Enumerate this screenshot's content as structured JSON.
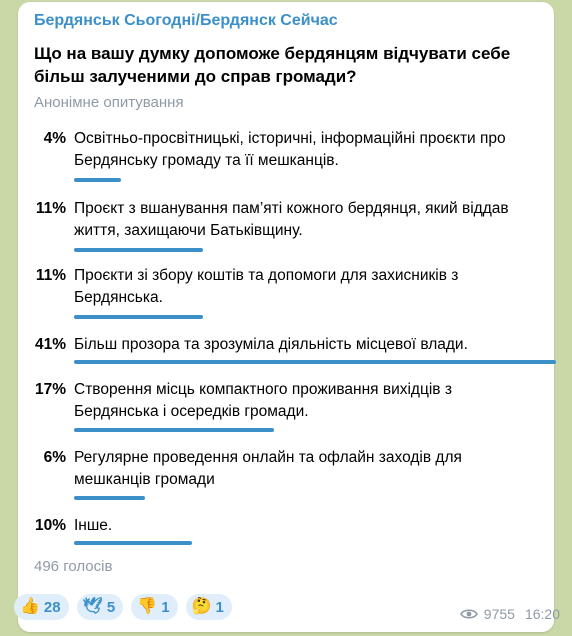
{
  "channel": "Бердянськ Сьогодні/Бердянск Сейчас",
  "question": "Що на вашу думку допоможе бердянцям відчувати себе більш залученими до справ громади?",
  "poll_type": "Анонімне опитування",
  "options": [
    {
      "percent": "4%",
      "text": "Освітньо-просвітницькі, історичні, інформаційні проєкти про Бердянську громаду та її мешканців.",
      "value": 4
    },
    {
      "percent": "11%",
      "text": "Проєкт з вшанування пам’яті кожного бердянця, який віддав життя, захищаючи Батьківщину.",
      "value": 11
    },
    {
      "percent": "11%",
      "text": "Проєкти зі збору коштів та допомоги для захисників з Бердянська.",
      "value": 11
    },
    {
      "percent": "41%",
      "text": "Більш прозора та зрозуміла діяльність місцевої влади.",
      "value": 41
    },
    {
      "percent": "17%",
      "text": "Створення місць компактного проживання вихідців з Бердянська і осередків громади.",
      "value": 17
    },
    {
      "percent": "6%",
      "text": "Регулярне проведення онлайн та офлайн заходів для мешканців громади",
      "value": 6
    },
    {
      "percent": "10%",
      "text": "Інше.",
      "value": 10
    }
  ],
  "votes": "496 голосів",
  "reactions": [
    {
      "icon": "thumbs-up-icon",
      "emoji": "👍",
      "count": "28"
    },
    {
      "icon": "dove-icon",
      "emoji": "🕊",
      "count": "5"
    },
    {
      "icon": "thumbs-down-icon",
      "emoji": "👎",
      "count": "1"
    },
    {
      "icon": "thinking-face-icon",
      "emoji": "🤔",
      "count": "1"
    }
  ],
  "views": "9755",
  "time": "16:20",
  "colors": {
    "accent": "#3b90c9",
    "background": "#c9d8a6",
    "muted": "#8e9aa5"
  }
}
